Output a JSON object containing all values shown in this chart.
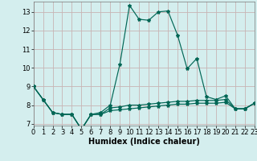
{
  "xlabel": "Humidex (Indice chaleur)",
  "background_color": "#d4eeee",
  "grid_color": "#c8b4b4",
  "line_color": "#006655",
  "xlim": [
    0,
    23
  ],
  "ylim": [
    6.9,
    13.55
  ],
  "yticks": [
    7,
    8,
    9,
    10,
    11,
    12,
    13
  ],
  "xticks": [
    0,
    1,
    2,
    3,
    4,
    5,
    6,
    7,
    8,
    9,
    10,
    11,
    12,
    13,
    14,
    15,
    16,
    17,
    18,
    19,
    20,
    21,
    22,
    23
  ],
  "x": [
    0,
    1,
    2,
    3,
    4,
    5,
    6,
    7,
    8,
    9,
    10,
    11,
    12,
    13,
    14,
    15,
    16,
    17,
    18,
    19,
    20,
    21,
    22,
    23
  ],
  "y_main": [
    9.0,
    8.3,
    7.6,
    7.5,
    7.5,
    6.7,
    7.5,
    7.6,
    8.0,
    10.2,
    13.35,
    12.6,
    12.55,
    13.0,
    13.05,
    11.75,
    9.95,
    10.5,
    8.45,
    8.3,
    8.5,
    7.8,
    7.8,
    8.1
  ],
  "y_mid": [
    9.0,
    8.3,
    7.6,
    7.5,
    7.5,
    6.7,
    7.5,
    7.5,
    7.85,
    7.9,
    8.0,
    8.0,
    8.05,
    8.1,
    8.15,
    8.2,
    8.2,
    8.25,
    8.25,
    8.25,
    8.3,
    7.8,
    7.8,
    8.1
  ],
  "y_low": [
    9.0,
    8.3,
    7.6,
    7.5,
    7.5,
    6.7,
    7.5,
    7.5,
    7.7,
    7.75,
    7.8,
    7.85,
    7.9,
    7.95,
    8.0,
    8.05,
    8.05,
    8.1,
    8.1,
    8.1,
    8.15,
    7.8,
    7.8,
    8.1
  ],
  "tick_fontsize": 6,
  "xlabel_fontsize": 7
}
